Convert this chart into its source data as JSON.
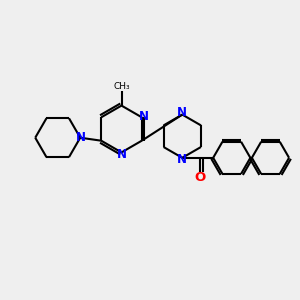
{
  "background_color": "#efefef",
  "bond_color": "#000000",
  "nitrogen_color": "#0000ff",
  "oxygen_color": "#ff0000",
  "line_width": 1.5,
  "font_size": 8.5,
  "figsize": [
    3.0,
    3.0
  ],
  "dpi": 100,
  "xlim": [
    0,
    10
  ],
  "ylim": [
    0,
    10
  ]
}
